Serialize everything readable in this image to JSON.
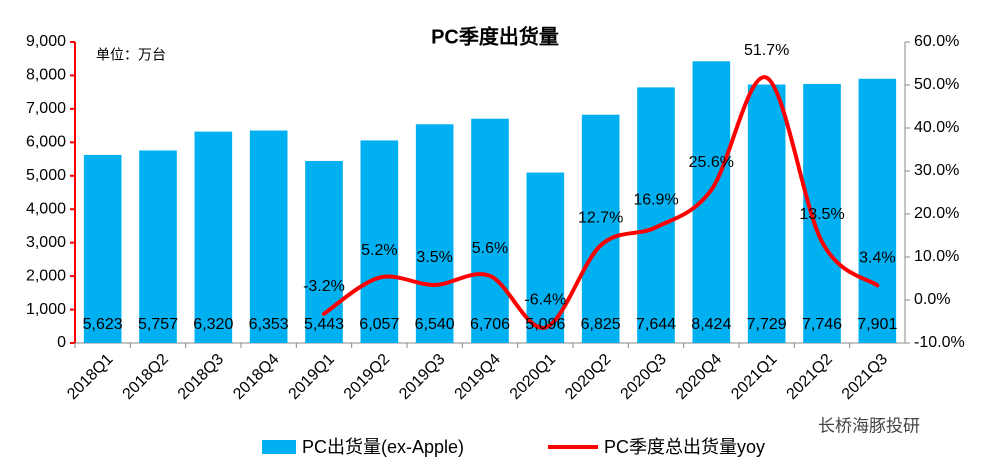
{
  "chart_data": {
    "type": "bar_line",
    "title": "PC季度出货量",
    "annotations": [
      "单位：万台",
      "长桥海豚投研"
    ],
    "categories": [
      "2018Q1",
      "2018Q2",
      "2018Q3",
      "2018Q4",
      "2019Q1",
      "2019Q2",
      "2019Q3",
      "2019Q4",
      "2020Q1",
      "2020Q2",
      "2020Q3",
      "2020Q4",
      "2021Q1",
      "2021Q2",
      "2021Q3"
    ],
    "series": [
      {
        "name": "PC出货量(ex-Apple)",
        "type": "bar",
        "color": "#00b0f0",
        "values": [
          5623,
          5757,
          6320,
          6353,
          5443,
          6057,
          6540,
          6706,
          5096,
          6825,
          7644,
          8424,
          7729,
          7746,
          7901
        ],
        "value_labels": [
          "5,623",
          "5,757",
          "6,320",
          "6,353",
          "5,443",
          "6,057",
          "6,540",
          "6,706",
          "5,096",
          "6,825",
          "7,644",
          "8,424",
          "7,729",
          "7,746",
          "7,901"
        ]
      },
      {
        "name": "PC季度总出货量yoy",
        "type": "line",
        "axis": "y2",
        "color": "#ff0000",
        "values": [
          null,
          null,
          null,
          null,
          -3.2,
          5.2,
          3.5,
          5.6,
          -6.4,
          12.7,
          16.9,
          25.6,
          51.7,
          13.5,
          3.4
        ],
        "value_labels": [
          null,
          null,
          null,
          null,
          "-3.2%",
          "5.2%",
          "3.5%",
          "5.6%",
          "-6.4%",
          "12.7%",
          "16.9%",
          "25.6%",
          "51.7%",
          "13.5%",
          "3.4%"
        ]
      }
    ],
    "ylim": [
      0,
      9000
    ],
    "yticks": [
      0,
      {
        "value": 1000,
        "label": "1,000"
      },
      {
        "value": 2000,
        "label": "2,000"
      },
      {
        "value": 3000,
        "label": "3,000"
      },
      {
        "value": 4000,
        "label": "4,000"
      },
      {
        "value": 5000,
        "label": "5,000"
      },
      {
        "value": 6000,
        "label": "6,000"
      },
      {
        "value": 7000,
        "label": "7,000"
      },
      {
        "value": 8000,
        "label": "8,000"
      },
      {
        "value": 9000,
        "label": "9,000"
      }
    ],
    "y2lim": [
      -10,
      60
    ],
    "y2ticks": [
      {
        "value": -10,
        "label": "-10.0%"
      },
      {
        "value": 0,
        "label": "0.0%"
      },
      {
        "value": 10,
        "label": "10.0%"
      },
      {
        "value": 20,
        "label": "20.0%"
      },
      {
        "value": 30,
        "label": "30.0%"
      },
      {
        "value": 40,
        "label": "40.0%"
      },
      {
        "value": 50,
        "label": "50.0%"
      },
      {
        "value": 60,
        "label": "60.0%"
      }
    ],
    "grid": false,
    "legend": "bottom"
  }
}
